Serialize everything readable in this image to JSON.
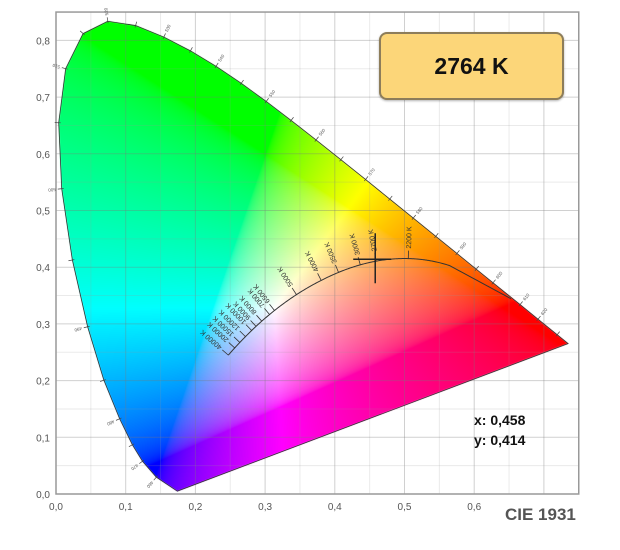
{
  "chart_data": {
    "type": "chromaticity",
    "title": "CIE 1931",
    "xlim": [
      0,
      0.75
    ],
    "ylim": [
      0,
      0.85
    ],
    "grid": true,
    "x_ticks": [
      {
        "v": 0,
        "label": "0,0"
      },
      {
        "v": 0.1,
        "label": "0,1"
      },
      {
        "v": 0.2,
        "label": "0,2"
      },
      {
        "v": 0.3,
        "label": "0,3"
      },
      {
        "v": 0.4,
        "label": "0,4"
      },
      {
        "v": 0.5,
        "label": "0,5"
      },
      {
        "v": 0.6,
        "label": "0,6"
      }
    ],
    "y_ticks": [
      {
        "v": 0,
        "label": "0,0"
      },
      {
        "v": 0.1,
        "label": "0,1"
      },
      {
        "v": 0.2,
        "label": "0,2"
      },
      {
        "v": 0.3,
        "label": "0,3"
      },
      {
        "v": 0.4,
        "label": "0,4"
      },
      {
        "v": 0.5,
        "label": "0,5"
      },
      {
        "v": 0.6,
        "label": "0,6"
      },
      {
        "v": 0.7,
        "label": "0,7"
      },
      {
        "v": 0.8,
        "label": "0,8"
      }
    ],
    "spectral_locus": [
      {
        "nm": 380,
        "x": 0.1741,
        "y": 0.005
      },
      {
        "nm": 460,
        "x": 0.144,
        "y": 0.0297
      },
      {
        "nm": 470,
        "x": 0.1241,
        "y": 0.0578
      },
      {
        "nm": 475,
        "x": 0.1096,
        "y": 0.0868
      },
      {
        "nm": 480,
        "x": 0.0913,
        "y": 0.1327
      },
      {
        "nm": 485,
        "x": 0.0687,
        "y": 0.2007
      },
      {
        "nm": 490,
        "x": 0.0454,
        "y": 0.295
      },
      {
        "nm": 495,
        "x": 0.0235,
        "y": 0.4127
      },
      {
        "nm": 500,
        "x": 0.0082,
        "y": 0.5384
      },
      {
        "nm": 505,
        "x": 0.0039,
        "y": 0.6548
      },
      {
        "nm": 510,
        "x": 0.0139,
        "y": 0.7502
      },
      {
        "nm": 515,
        "x": 0.0389,
        "y": 0.812
      },
      {
        "nm": 520,
        "x": 0.0743,
        "y": 0.8338
      },
      {
        "nm": 525,
        "x": 0.1142,
        "y": 0.8262
      },
      {
        "nm": 530,
        "x": 0.1547,
        "y": 0.8059
      },
      {
        "nm": 535,
        "x": 0.1929,
        "y": 0.7816
      },
      {
        "nm": 540,
        "x": 0.2296,
        "y": 0.7543
      },
      {
        "nm": 545,
        "x": 0.2658,
        "y": 0.7243
      },
      {
        "nm": 550,
        "x": 0.3016,
        "y": 0.6923
      },
      {
        "nm": 555,
        "x": 0.3373,
        "y": 0.6589
      },
      {
        "nm": 560,
        "x": 0.3731,
        "y": 0.6245
      },
      {
        "nm": 565,
        "x": 0.4087,
        "y": 0.5896
      },
      {
        "nm": 570,
        "x": 0.4441,
        "y": 0.5547
      },
      {
        "nm": 575,
        "x": 0.4788,
        "y": 0.5202
      },
      {
        "nm": 580,
        "x": 0.5125,
        "y": 0.4866
      },
      {
        "nm": 585,
        "x": 0.5448,
        "y": 0.4544
      },
      {
        "nm": 590,
        "x": 0.5752,
        "y": 0.4242
      },
      {
        "nm": 595,
        "x": 0.6029,
        "y": 0.3965
      },
      {
        "nm": 600,
        "x": 0.627,
        "y": 0.3725
      },
      {
        "nm": 610,
        "x": 0.6658,
        "y": 0.334
      },
      {
        "nm": 620,
        "x": 0.6915,
        "y": 0.3083
      },
      {
        "nm": 640,
        "x": 0.719,
        "y": 0.2809
      },
      {
        "nm": 700,
        "x": 0.7347,
        "y": 0.2653
      }
    ],
    "wavelength_labels": [
      460,
      470,
      480,
      490,
      500,
      510,
      520,
      530,
      540,
      550,
      560,
      570,
      580,
      590,
      600,
      610,
      620
    ],
    "planckian_ticks": [
      {
        "T": 40000,
        "label": "40000 K"
      },
      {
        "T": 20000,
        "label": "20000 K"
      },
      {
        "T": 15000,
        "label": "15000 K"
      },
      {
        "T": 12000,
        "label": "12000 K"
      },
      {
        "T": 10000,
        "label": "10000 K"
      },
      {
        "T": 9000,
        "label": "9000 K"
      },
      {
        "T": 8000,
        "label": "8000 K"
      },
      {
        "T": 7000,
        "label": "7000 K"
      },
      {
        "T": 6500,
        "label": "6500 K"
      },
      {
        "T": 5000,
        "label": "5000 K"
      },
      {
        "T": 4000,
        "label": "4000 K"
      },
      {
        "T": 3500,
        "label": "3500 K"
      },
      {
        "T": 3000,
        "label": "3000 K"
      },
      {
        "T": 2700,
        "label": "2700 K"
      },
      {
        "T": 2200,
        "label": "2200 K"
      }
    ],
    "measured_point": {
      "x": 0.458,
      "y": 0.414,
      "cct": 2764
    }
  },
  "cct_display": "2764 K",
  "readout": {
    "x": "x: 0,458",
    "y": "y: 0,414"
  },
  "brand": "CIE 1931"
}
